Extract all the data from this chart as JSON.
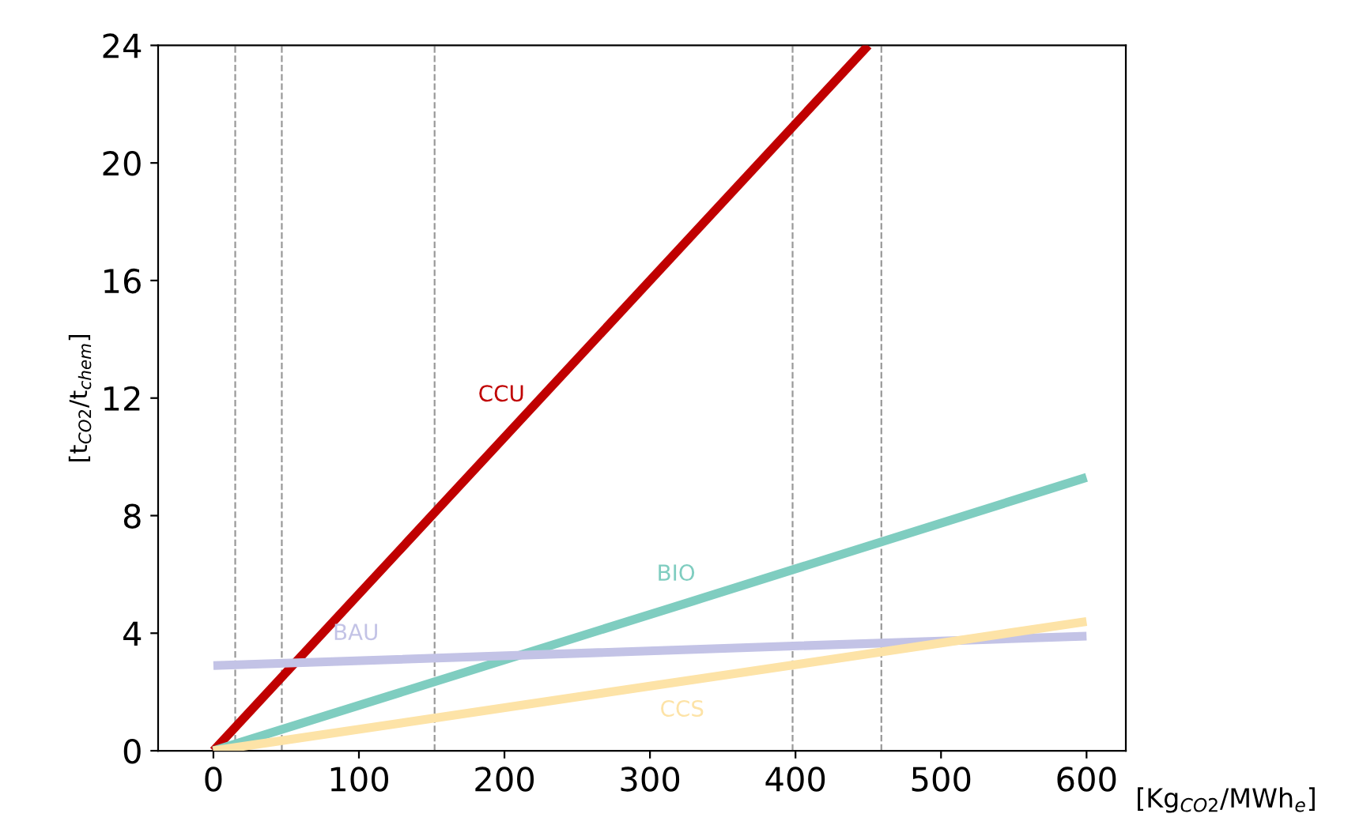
{
  "chart_data": {
    "type": "line",
    "xlabel": "[Kg$_{CO2}$/MWh$_{e}$]",
    "ylabel": "[t$_{CO2}$/t$_{chem}$]",
    "xlim": [
      -38,
      627
    ],
    "ylim": [
      0,
      24
    ],
    "xticks": [
      0,
      100,
      200,
      300,
      400,
      500,
      600
    ],
    "yticks": [
      0,
      4,
      8,
      12,
      16,
      20,
      24
    ],
    "grid": false,
    "legend": false,
    "marker": "none",
    "line_style": "solid",
    "series": [
      {
        "name": "CCU",
        "color": "#c00000",
        "x": [
          0,
          210,
          450
        ],
        "values": [
          0,
          11.2,
          24
        ]
      },
      {
        "name": "BIO",
        "color": "#7fcdc0",
        "x": [
          0,
          330,
          600
        ],
        "values": [
          0,
          5.1,
          9.3
        ]
      },
      {
        "name": "BAU",
        "color": "#c3c3e6",
        "x": [
          0,
          110,
          600
        ],
        "values": [
          2.9,
          3.08,
          3.9
        ]
      },
      {
        "name": "CCS",
        "color": "#fde3a7",
        "x": [
          0,
          310,
          600
        ],
        "values": [
          0,
          2.27,
          4.4
        ]
      }
    ],
    "ref_lines": [
      {
        "axis": "x",
        "value": 15,
        "color": "#999999",
        "line_style": "dashed"
      },
      {
        "axis": "x",
        "value": 47,
        "color": "#999999",
        "line_style": "dashed"
      },
      {
        "axis": "x",
        "value": 152,
        "color": "#999999",
        "line_style": "dashed"
      },
      {
        "axis": "x",
        "value": 398,
        "color": "#999999",
        "line_style": "dashed"
      },
      {
        "axis": "x",
        "value": 459,
        "color": "#999999",
        "line_style": "dashed"
      }
    ]
  }
}
